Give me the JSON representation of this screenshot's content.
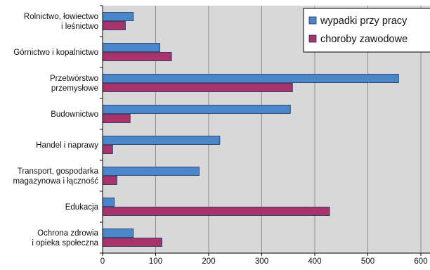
{
  "chart_data": {
    "type": "bar",
    "orientation": "horizontal",
    "categories": [
      [
        "Rolnictwo, łowiectwo",
        "i leśnictwo"
      ],
      [
        "Górnictwo i kopalnictwo"
      ],
      [
        "Przetwórstwo",
        "przemysłowe"
      ],
      [
        "Budownictwo"
      ],
      [
        "Handel i naprawy"
      ],
      [
        "Transport, gospodarka",
        "magazynowa i łączność"
      ],
      [
        "Edukacja"
      ],
      [
        "Ochrona zdrowia",
        "i opieka społeczna"
      ]
    ],
    "series": [
      {
        "name": "wypadki przy pracy",
        "color": "#4A86C8",
        "values": [
          58,
          108,
          558,
          354,
          221,
          182,
          22,
          58
        ]
      },
      {
        "name": "choroby zawodowe",
        "color": "#A8326A",
        "values": [
          43,
          130,
          358,
          52,
          19,
          27,
          428,
          112
        ]
      }
    ],
    "xlim": [
      0,
      600
    ],
    "xticks": [
      0,
      100,
      200,
      300,
      400,
      500,
      600
    ],
    "grid": true,
    "legend": "top-right",
    "background": "#D8D8D8",
    "bar_outline": "#1F2F5F"
  }
}
